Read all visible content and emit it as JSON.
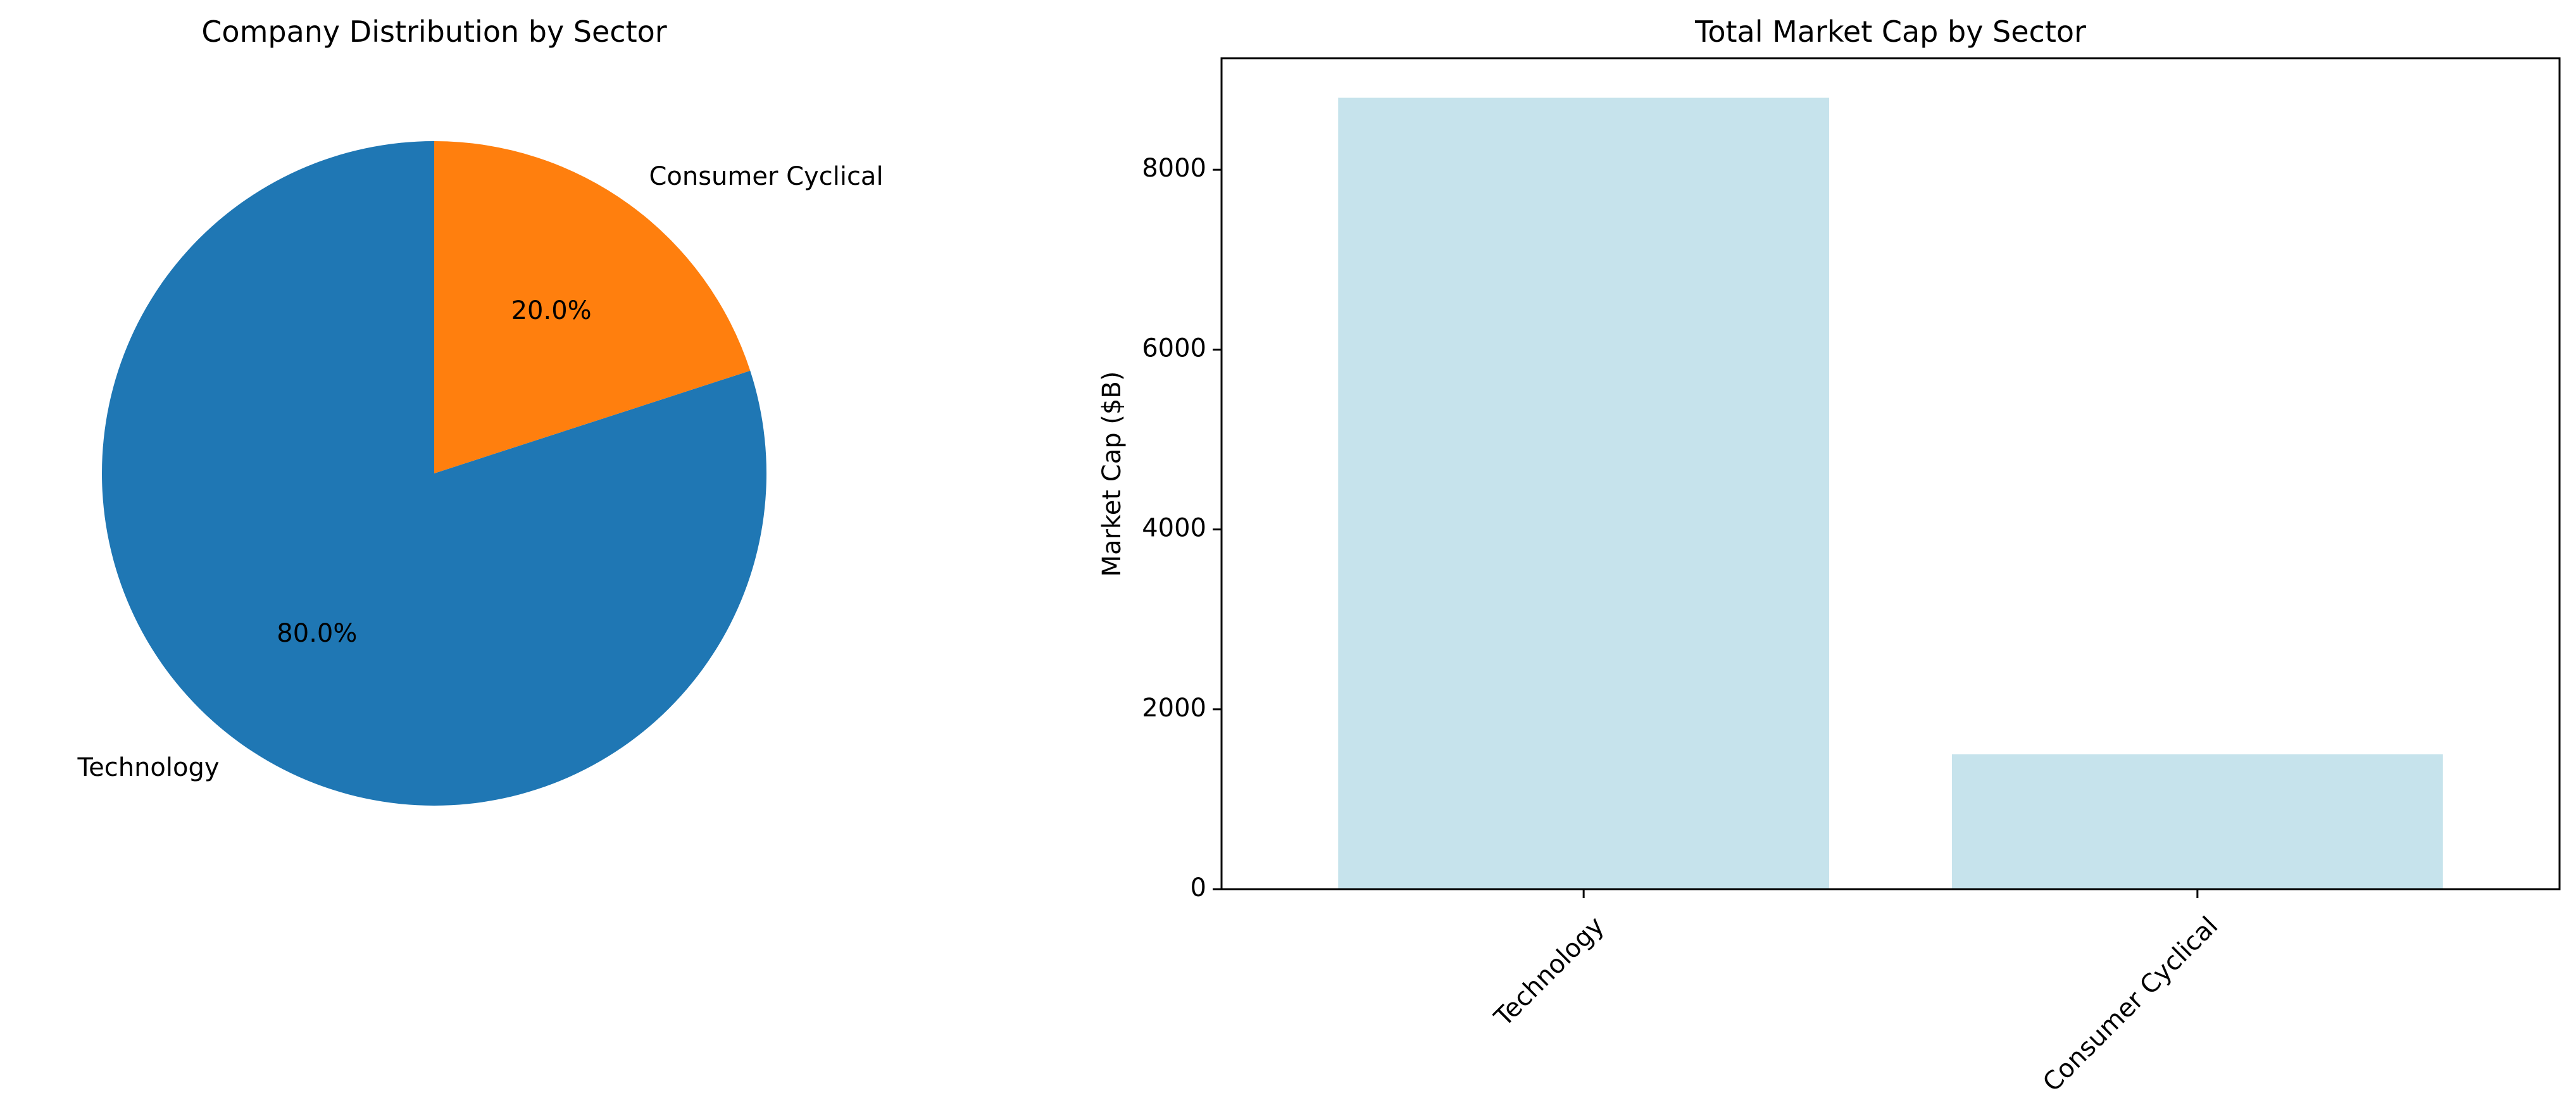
{
  "chart_data": [
    {
      "type": "pie",
      "title": "Company Distribution by Sector",
      "categories": [
        "Technology",
        "Consumer Cyclical"
      ],
      "values": [
        80.0,
        20.0
      ],
      "value_labels": [
        "80.0%",
        "20.0%"
      ],
      "colors": [
        "#1f77b4",
        "#ff7f0e"
      ]
    },
    {
      "type": "bar",
      "title": "Total Market Cap by Sector",
      "categories": [
        "Technology",
        "Consumer Cyclical"
      ],
      "values": [
        8800,
        1500
      ],
      "xlabel": "",
      "ylabel": "Market Cap ($B)",
      "ylim": [
        0,
        9240
      ],
      "yticks": [
        0,
        2000,
        4000,
        6000,
        8000
      ],
      "bar_color": "#c6e3ec",
      "grid": false
    }
  ]
}
